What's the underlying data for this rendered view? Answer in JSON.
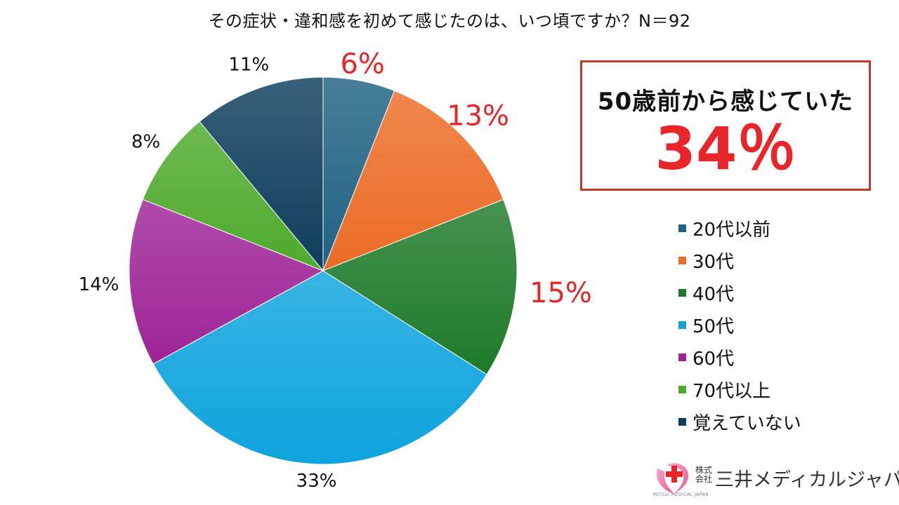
{
  "chart_data": {
    "type": "pie",
    "title": "その症状・違和感を初めて感じたのは、いつ頃ですか？N＝92",
    "categories": [
      "20代以前",
      "30代",
      "40代",
      "50代",
      "60代",
      "70代以上",
      "覚えていない"
    ],
    "values": [
      6,
      13,
      15,
      33,
      14,
      8,
      11
    ],
    "value_labels": [
      "6%",
      "13%",
      "15%",
      "33%",
      "14%",
      "8%",
      "11%"
    ],
    "unit": "%",
    "colors": [
      "#1f6283",
      "#ec6b26",
      "#1e7a2a",
      "#0ea3dd",
      "#9e2497",
      "#4eaa2c",
      "#0e3d5d"
    ],
    "label_colors": [
      "#e8262a",
      "#e8262a",
      "#e8262a",
      "#111111",
      "#111111",
      "#111111",
      "#111111"
    ],
    "legend_position": "right",
    "start_angle_deg": 0,
    "direction": "clockwise"
  },
  "callout": {
    "text": "50歳前から感じていた",
    "value": "34％"
  },
  "logo": {
    "kabu_top": "株式",
    "kabu_bottom": "会社",
    "name": "三井メディカルジャパン",
    "sub": "MITSUI MEDICAL JAPAN",
    "mark_icon": "heart-cross-icon"
  }
}
